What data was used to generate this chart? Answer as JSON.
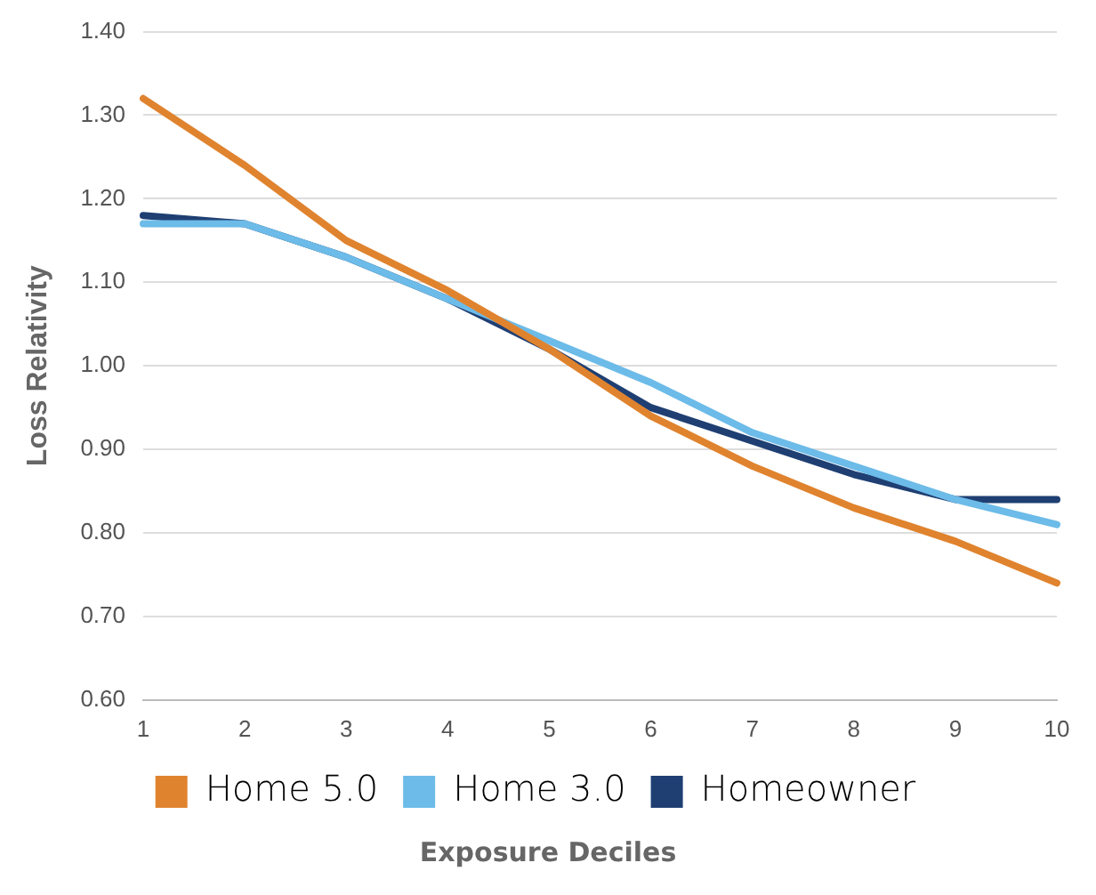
{
  "chart_data": {
    "type": "line",
    "xlabel": "Exposure Deciles",
    "ylabel": "Loss Relativity",
    "categories": [
      "1",
      "2",
      "3",
      "4",
      "5",
      "6",
      "7",
      "8",
      "9",
      "10"
    ],
    "series": [
      {
        "name": "Home 5.0",
        "color": "#e0832e",
        "values": [
          1.32,
          1.24,
          1.15,
          1.09,
          1.02,
          0.94,
          0.88,
          0.83,
          0.79,
          0.74
        ]
      },
      {
        "name": "Home 3.0",
        "color": "#6cbbe8",
        "values": [
          1.17,
          1.17,
          1.13,
          1.08,
          1.03,
          0.98,
          0.92,
          0.88,
          0.84,
          0.81
        ]
      },
      {
        "name": "Homeowner",
        "color": "#1f3f73",
        "values": [
          1.18,
          1.17,
          1.13,
          1.08,
          1.02,
          0.95,
          0.91,
          0.87,
          0.84,
          0.84
        ]
      }
    ],
    "ylim": [
      0.6,
      1.4
    ],
    "yticks": [
      {
        "value": 0.6,
        "label": "0.60"
      },
      {
        "value": 0.7,
        "label": "0.70"
      },
      {
        "value": 0.8,
        "label": "0.80"
      },
      {
        "value": 0.9,
        "label": "0.90"
      },
      {
        "value": 1.0,
        "label": "1.00"
      },
      {
        "value": 1.1,
        "label": "1.10"
      },
      {
        "value": 1.2,
        "label": "1.20"
      },
      {
        "value": 1.3,
        "label": "1.30"
      },
      {
        "value": 1.4,
        "label": "1.40"
      }
    ],
    "grid": "y",
    "legend": "bottom",
    "marker": "none",
    "line_style": "solid"
  }
}
